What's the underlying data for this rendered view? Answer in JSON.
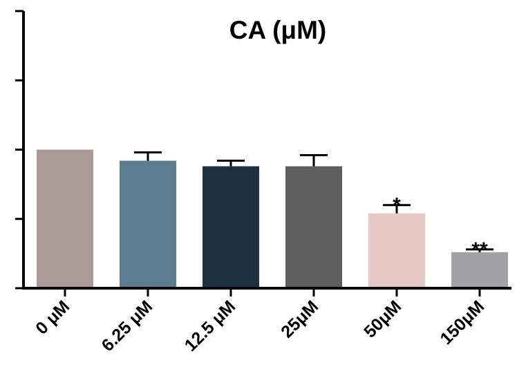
{
  "chart_data": {
    "type": "bar",
    "title": "CA (μM)",
    "xlabel": "",
    "ylabel": "",
    "categories": [
      "0 μM",
      "6.25 μM",
      "12.5 μM",
      "25μM",
      "50μM",
      "150μM"
    ],
    "values": [
      100,
      96,
      94,
      94,
      77,
      63
    ],
    "errors": [
      0,
      3,
      2,
      4,
      3,
      1
    ],
    "significance": [
      "",
      "",
      "",
      "",
      "*",
      "**"
    ],
    "colors": [
      "#ac9a97",
      "#5c7d8f",
      "#1c3041",
      "#5f5f5f",
      "#e6c8c4",
      "#a2a2a5"
    ],
    "ylim": [
      50,
      150
    ],
    "y_ticks": [
      50,
      75,
      100,
      125,
      150
    ],
    "y_tick_labels_visible": false,
    "grid": false,
    "legend": "none"
  }
}
